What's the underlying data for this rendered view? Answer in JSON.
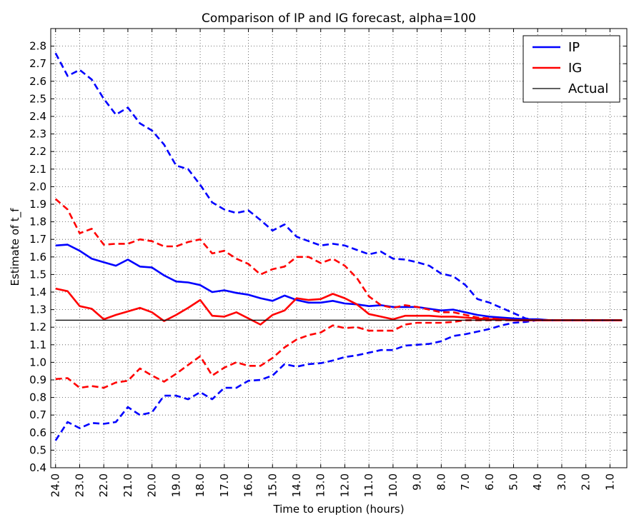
{
  "chart_data": {
    "type": "line",
    "title": "Comparison of IP and IG forecast, alpha=100",
    "xlabel": "Time to eruption (hours)",
    "ylabel": "Estimate of t_f",
    "xlim": [
      24.2,
      0.3
    ],
    "ylim": [
      0.4,
      2.9
    ],
    "x_inverted": true,
    "grid": true,
    "legend_position": "top-right",
    "x_ticks": [
      24.0,
      23.0,
      22.0,
      21.0,
      20.0,
      19.0,
      18.0,
      17.0,
      16.0,
      15.0,
      14.0,
      13.0,
      12.0,
      11.0,
      10.0,
      9.0,
      8.0,
      7.0,
      6.0,
      5.0,
      4.0,
      3.0,
      2.0,
      1.0
    ],
    "x_tick_labels": [
      "24.0",
      "23.0",
      "22.0",
      "21.0",
      "20.0",
      "19.0",
      "18.0",
      "17.0",
      "16.0",
      "15.0",
      "14.0",
      "13.0",
      "12.0",
      "11.0",
      "10.0",
      "9.0",
      "8.0",
      "7.0",
      "6.0",
      "5.0",
      "4.0",
      "3.0",
      "2.0",
      "1.0"
    ],
    "y_ticks": [
      0.4,
      0.5,
      0.6,
      0.7,
      0.8,
      0.9,
      1.0,
      1.1,
      1.2,
      1.3,
      1.4,
      1.5,
      1.6,
      1.7,
      1.8,
      1.9,
      2.0,
      2.1,
      2.2,
      2.3,
      2.4,
      2.5,
      2.6,
      2.7,
      2.8
    ],
    "y_tick_labels": [
      "0.4",
      "0.5",
      "0.6",
      "0.7",
      "0.8",
      "0.9",
      "1.0",
      "1.1",
      "1.2",
      "1.3",
      "1.4",
      "1.5",
      "1.6",
      "1.7",
      "1.8",
      "1.9",
      "2.0",
      "2.1",
      "2.2",
      "2.3",
      "2.4",
      "2.5",
      "2.6",
      "2.7",
      "2.8"
    ],
    "x": [
      24.0,
      23.5,
      23.0,
      22.5,
      22.0,
      21.5,
      21.0,
      20.5,
      20.0,
      19.5,
      19.0,
      18.5,
      18.0,
      17.5,
      17.0,
      16.5,
      16.0,
      15.5,
      15.0,
      14.5,
      14.0,
      13.5,
      13.0,
      12.5,
      12.0,
      11.5,
      11.0,
      10.5,
      10.0,
      9.5,
      9.0,
      8.5,
      8.0,
      7.5,
      7.0,
      6.5,
      6.0,
      5.5,
      5.0,
      4.5,
      4.0,
      3.5,
      3.0,
      2.5,
      2.0,
      1.5,
      1.0,
      0.5
    ],
    "series": [
      {
        "name": "IP",
        "legend": true,
        "color": "#0000ff",
        "style": "solid",
        "values": [
          1.665,
          1.67,
          1.635,
          1.59,
          1.57,
          1.55,
          1.585,
          1.545,
          1.54,
          1.495,
          1.46,
          1.455,
          1.44,
          1.4,
          1.41,
          1.395,
          1.385,
          1.365,
          1.35,
          1.38,
          1.355,
          1.34,
          1.34,
          1.35,
          1.335,
          1.33,
          1.32,
          1.325,
          1.315,
          1.315,
          1.315,
          1.305,
          1.295,
          1.3,
          1.285,
          1.27,
          1.26,
          1.255,
          1.25,
          1.245,
          1.245,
          1.24,
          1.24,
          1.24,
          1.24,
          1.24,
          1.24,
          1.24
        ]
      },
      {
        "name": "IG",
        "legend": true,
        "color": "#ff0000",
        "style": "solid",
        "values": [
          1.42,
          1.405,
          1.32,
          1.305,
          1.245,
          1.27,
          1.29,
          1.31,
          1.285,
          1.235,
          1.27,
          1.31,
          1.355,
          1.265,
          1.26,
          1.285,
          1.25,
          1.215,
          1.27,
          1.295,
          1.365,
          1.355,
          1.36,
          1.39,
          1.365,
          1.33,
          1.275,
          1.26,
          1.245,
          1.265,
          1.265,
          1.265,
          1.26,
          1.26,
          1.255,
          1.25,
          1.245,
          1.245,
          1.24,
          1.24,
          1.24,
          1.24,
          1.24,
          1.24,
          1.24,
          1.24,
          1.24,
          1.24
        ]
      },
      {
        "name": "IP upper",
        "legend": false,
        "color": "#0000ff",
        "style": "dashed",
        "values": [
          2.76,
          2.63,
          2.665,
          2.61,
          2.5,
          2.41,
          2.45,
          2.36,
          2.32,
          2.24,
          2.12,
          2.1,
          2.01,
          1.91,
          1.87,
          1.85,
          1.865,
          1.81,
          1.75,
          1.785,
          1.715,
          1.69,
          1.665,
          1.675,
          1.665,
          1.64,
          1.615,
          1.63,
          1.59,
          1.585,
          1.57,
          1.55,
          1.505,
          1.49,
          1.44,
          1.36,
          1.34,
          1.31,
          1.28,
          1.25,
          1.24,
          1.24,
          1.24,
          1.24,
          1.24,
          1.24,
          1.24,
          1.24
        ]
      },
      {
        "name": "IP lower",
        "legend": false,
        "color": "#0000ff",
        "style": "dashed",
        "values": [
          0.555,
          0.66,
          0.625,
          0.655,
          0.65,
          0.66,
          0.745,
          0.7,
          0.715,
          0.81,
          0.81,
          0.79,
          0.83,
          0.79,
          0.855,
          0.855,
          0.895,
          0.9,
          0.925,
          0.99,
          0.975,
          0.99,
          0.995,
          1.01,
          1.03,
          1.04,
          1.055,
          1.07,
          1.07,
          1.095,
          1.1,
          1.105,
          1.12,
          1.15,
          1.16,
          1.175,
          1.19,
          1.21,
          1.225,
          1.23,
          1.24,
          1.24,
          1.24,
          1.24,
          1.24,
          1.24,
          1.24,
          1.24
        ]
      },
      {
        "name": "IG upper",
        "legend": false,
        "color": "#ff0000",
        "style": "dashed",
        "values": [
          1.93,
          1.87,
          1.735,
          1.76,
          1.67,
          1.675,
          1.675,
          1.7,
          1.69,
          1.66,
          1.66,
          1.685,
          1.7,
          1.62,
          1.635,
          1.59,
          1.56,
          1.5,
          1.53,
          1.545,
          1.6,
          1.6,
          1.565,
          1.59,
          1.55,
          1.48,
          1.375,
          1.325,
          1.31,
          1.325,
          1.315,
          1.3,
          1.285,
          1.285,
          1.27,
          1.255,
          1.25,
          1.245,
          1.24,
          1.24,
          1.24,
          1.24,
          1.24,
          1.24,
          1.24,
          1.24,
          1.24,
          1.24
        ]
      },
      {
        "name": "IG lower",
        "legend": false,
        "color": "#ff0000",
        "style": "dashed",
        "values": [
          0.905,
          0.91,
          0.855,
          0.865,
          0.855,
          0.885,
          0.895,
          0.965,
          0.925,
          0.89,
          0.935,
          0.985,
          1.035,
          0.925,
          0.97,
          1.0,
          0.98,
          0.98,
          1.025,
          1.085,
          1.13,
          1.155,
          1.17,
          1.21,
          1.195,
          1.2,
          1.18,
          1.18,
          1.18,
          1.215,
          1.225,
          1.225,
          1.225,
          1.23,
          1.24,
          1.24,
          1.24,
          1.24,
          1.24,
          1.24,
          1.24,
          1.24,
          1.24,
          1.24,
          1.24,
          1.24,
          1.24,
          1.24
        ]
      },
      {
        "name": "Actual",
        "legend": true,
        "color": "#000000",
        "style": "thin",
        "constant": 1.24
      }
    ]
  }
}
